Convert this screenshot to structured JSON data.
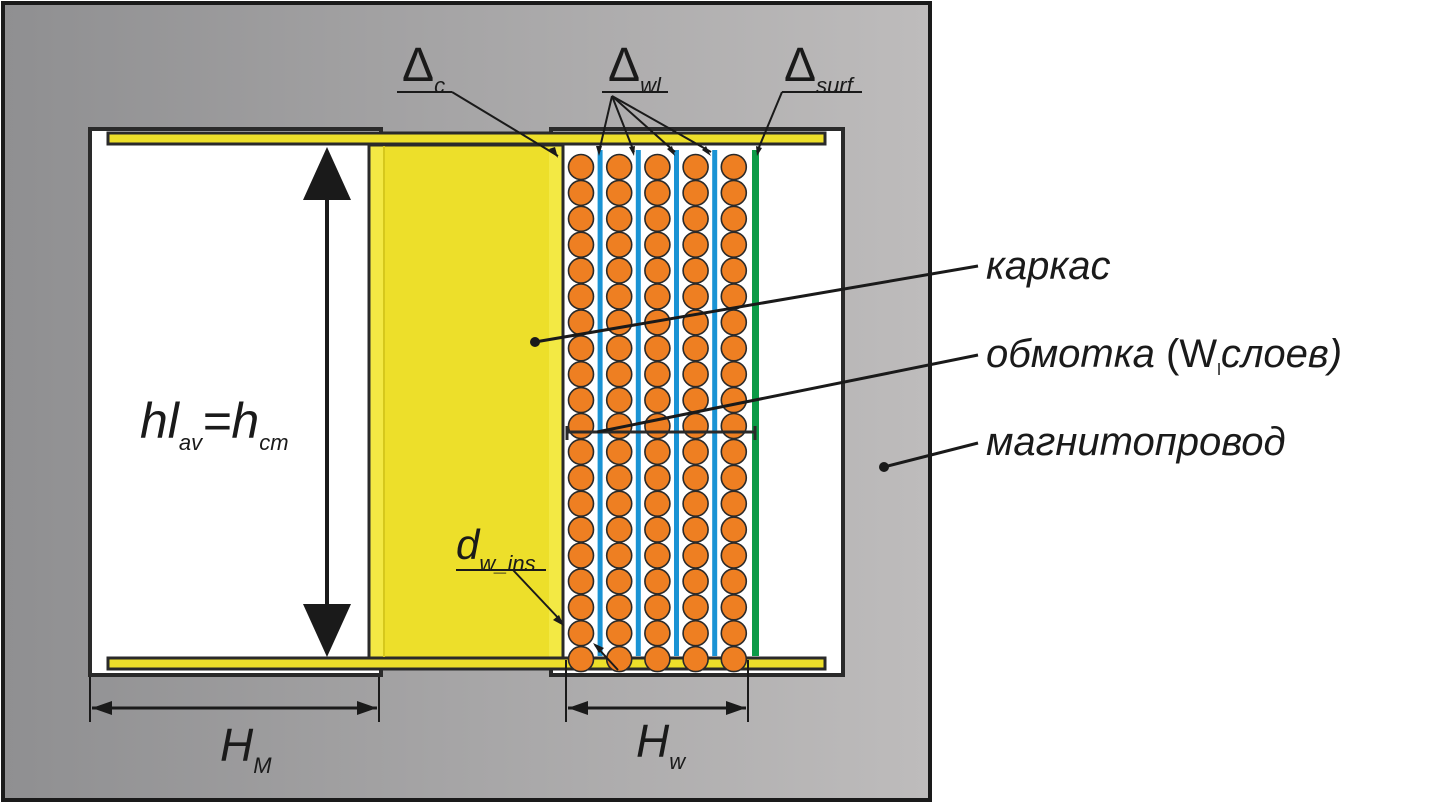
{
  "diagram": {
    "colors": {
      "core_gradient_left": "#8f8f91",
      "core_gradient_right": "#bebcbc",
      "bobbin": "#eddf2a",
      "bobbin_edge": "#f3e944",
      "wire": "#ee7f22",
      "layer_insulation": "#1a93d4",
      "surface_insulation": "#0c9b47",
      "outline": "#2a2a2a"
    },
    "winding": {
      "wires_per_layer": 20,
      "layers": 5,
      "insulation_layers": 4
    },
    "labels": {
      "delta_c": {
        "symbol": "Δ",
        "sub": "c"
      },
      "delta_wl": {
        "symbol": "Δ",
        "sub": "wl"
      },
      "delta_surf": {
        "symbol": "Δ",
        "sub": "surf"
      },
      "height": {
        "h1": "hl",
        "sub1": "av",
        "eq": "=h",
        "sub2": "cm"
      },
      "dw_ins": {
        "symbol": "d",
        "sub": "w_ins"
      },
      "hm": {
        "symbol": "H",
        "sub": "M"
      },
      "hw": {
        "symbol": "H",
        "sub": "w"
      },
      "frame": "каркас",
      "winding_text": "обмотка",
      "winding_open": "(W",
      "winding_sub": "l",
      "winding_rest": "слоев)",
      "core": "магнитопровод"
    }
  }
}
